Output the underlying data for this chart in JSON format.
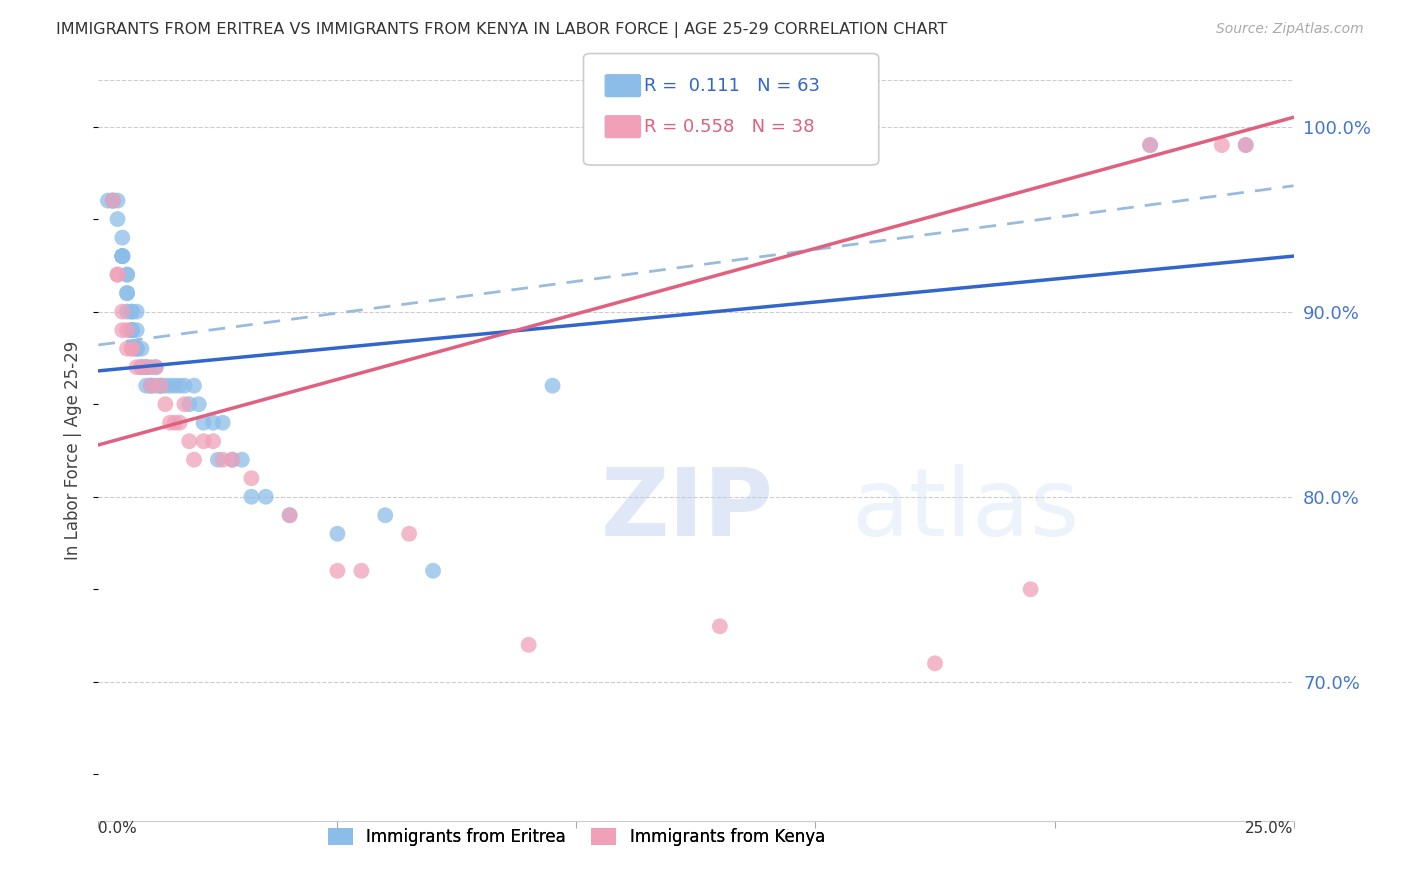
{
  "title": "IMMIGRANTS FROM ERITREA VS IMMIGRANTS FROM KENYA IN LABOR FORCE | AGE 25-29 CORRELATION CHART",
  "source": "Source: ZipAtlas.com",
  "ylabel": "In Labor Force | Age 25-29",
  "ylabel_ticks": [
    0.7,
    0.8,
    0.9,
    1.0
  ],
  "ylabel_tick_labels": [
    "70.0%",
    "80.0%",
    "90.0%",
    "100.0%"
  ],
  "xmin": 0.0,
  "xmax": 0.25,
  "ymin": 0.625,
  "ymax": 1.025,
  "blue_label": "Immigrants from Eritrea",
  "pink_label": "Immigrants from Kenya",
  "blue_R": "0.111",
  "blue_N": "63",
  "pink_R": "0.558",
  "pink_N": "38",
  "blue_dot_color": "#8BBDE8",
  "pink_dot_color": "#F0A0B8",
  "blue_line_color": "#3366CC",
  "pink_line_color": "#E06080",
  "dash_line_color": "#99BBDD",
  "grid_color": "#CCCCCC",
  "background_color": "#FFFFFF",
  "right_axis_color": "#4477CC",
  "watermark_zip": "ZIP",
  "watermark_atlas": "atlas",
  "blue_scatter_x": [
    0.002,
    0.003,
    0.003,
    0.003,
    0.004,
    0.004,
    0.005,
    0.005,
    0.005,
    0.005,
    0.005,
    0.006,
    0.006,
    0.006,
    0.006,
    0.006,
    0.007,
    0.007,
    0.007,
    0.007,
    0.007,
    0.007,
    0.008,
    0.008,
    0.008,
    0.008,
    0.008,
    0.009,
    0.009,
    0.009,
    0.01,
    0.01,
    0.01,
    0.011,
    0.011,
    0.011,
    0.012,
    0.012,
    0.013,
    0.013,
    0.014,
    0.015,
    0.016,
    0.017,
    0.018,
    0.019,
    0.02,
    0.021,
    0.022,
    0.024,
    0.025,
    0.026,
    0.028,
    0.03,
    0.032,
    0.035,
    0.04,
    0.05,
    0.06,
    0.07,
    0.095,
    0.22,
    0.24
  ],
  "blue_scatter_y": [
    0.96,
    0.96,
    0.96,
    0.96,
    0.95,
    0.96,
    0.93,
    0.93,
    0.93,
    0.93,
    0.94,
    0.9,
    0.91,
    0.91,
    0.92,
    0.92,
    0.89,
    0.89,
    0.89,
    0.89,
    0.9,
    0.9,
    0.88,
    0.88,
    0.88,
    0.89,
    0.9,
    0.87,
    0.87,
    0.88,
    0.86,
    0.87,
    0.87,
    0.86,
    0.86,
    0.87,
    0.86,
    0.87,
    0.86,
    0.86,
    0.86,
    0.86,
    0.86,
    0.86,
    0.86,
    0.85,
    0.86,
    0.85,
    0.84,
    0.84,
    0.82,
    0.84,
    0.82,
    0.82,
    0.8,
    0.8,
    0.79,
    0.78,
    0.79,
    0.76,
    0.86,
    0.99,
    0.99
  ],
  "pink_scatter_x": [
    0.003,
    0.004,
    0.004,
    0.005,
    0.005,
    0.006,
    0.006,
    0.007,
    0.007,
    0.008,
    0.009,
    0.01,
    0.011,
    0.012,
    0.013,
    0.014,
    0.015,
    0.016,
    0.017,
    0.018,
    0.019,
    0.02,
    0.022,
    0.024,
    0.026,
    0.028,
    0.032,
    0.04,
    0.05,
    0.055,
    0.065,
    0.09,
    0.13,
    0.175,
    0.195,
    0.22,
    0.235,
    0.24
  ],
  "pink_scatter_y": [
    0.96,
    0.92,
    0.92,
    0.89,
    0.9,
    0.88,
    0.89,
    0.88,
    0.88,
    0.87,
    0.87,
    0.87,
    0.86,
    0.87,
    0.86,
    0.85,
    0.84,
    0.84,
    0.84,
    0.85,
    0.83,
    0.82,
    0.83,
    0.83,
    0.82,
    0.82,
    0.81,
    0.79,
    0.76,
    0.76,
    0.78,
    0.72,
    0.73,
    0.71,
    0.75,
    0.99,
    0.99,
    0.99
  ],
  "blue_line_x0": 0.0,
  "blue_line_y0": 0.868,
  "blue_line_x1": 0.25,
  "blue_line_y1": 0.93,
  "pink_line_x0": 0.0,
  "pink_line_y0": 0.828,
  "pink_line_x1": 0.25,
  "pink_line_y1": 1.005,
  "dash_line_x0": 0.0,
  "dash_line_y0": 0.882,
  "dash_line_x1": 0.25,
  "dash_line_y1": 0.968
}
